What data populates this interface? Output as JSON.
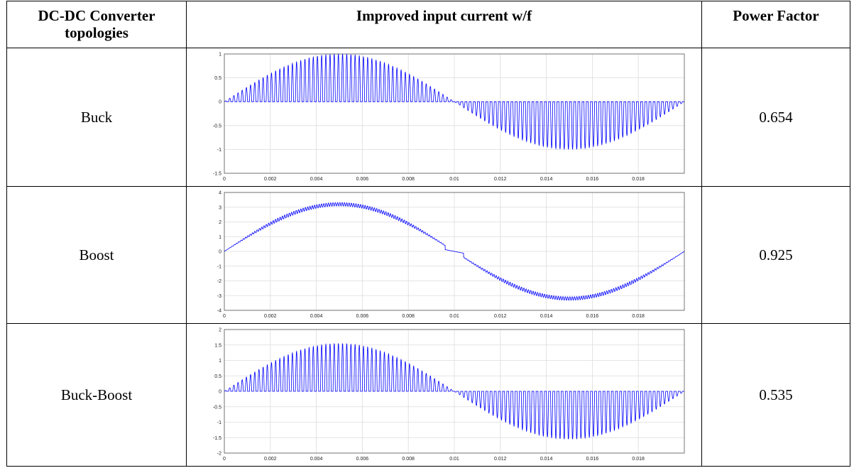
{
  "headers": {
    "col1": "DC-DC Converter topologies",
    "col2": "Improved input current w/f",
    "col3": "Power Factor"
  },
  "rows": [
    {
      "topology": "Buck",
      "power_factor": "0.654"
    },
    {
      "topology": "Boost",
      "power_factor": "0.925"
    },
    {
      "topology": "Buck-Boost",
      "power_factor": "0.535"
    }
  ],
  "chart_data": [
    {
      "type": "line",
      "name": "Buck",
      "x_range": [
        0,
        0.02
      ],
      "ylim": [
        -1.5,
        1
      ],
      "x_ticks": [
        "0",
        "0.002",
        "0.004",
        "0.006",
        "0.008",
        "0.01",
        "0.012",
        "0.014",
        "0.016",
        "0.018"
      ],
      "y_ticks": [
        "1",
        "0.5",
        "0",
        "-0.5",
        "-1",
        "-1.5"
      ],
      "waveform": "chopped",
      "amplitude": 1,
      "grid": true,
      "color": "#0000ff"
    },
    {
      "type": "line",
      "name": "Boost",
      "x_range": [
        0,
        0.02
      ],
      "ylim": [
        -4,
        4
      ],
      "x_ticks": [
        "0",
        "0.002",
        "0.004",
        "0.006",
        "0.008",
        "0.01",
        "0.012",
        "0.014",
        "0.016",
        "0.018"
      ],
      "y_ticks": [
        "4",
        "3",
        "2",
        "1",
        "0",
        "-1",
        "-2",
        "-3",
        "-4"
      ],
      "waveform": "sine_ripple",
      "amplitude": 3.2,
      "grid": true,
      "color": "#0000ff"
    },
    {
      "type": "line",
      "name": "Buck-Boost",
      "x_range": [
        0,
        0.02
      ],
      "ylim": [
        -2,
        2
      ],
      "x_ticks": [
        "0",
        "0.002",
        "0.004",
        "0.006",
        "0.008",
        "0.01",
        "0.012",
        "0.014",
        "0.016",
        "0.018"
      ],
      "y_ticks": [
        "2",
        "1.5",
        "1",
        "0.5",
        "0",
        "-0.5",
        "-1",
        "-1.5",
        "-2"
      ],
      "waveform": "chopped",
      "amplitude": 1.55,
      "grid": true,
      "color": "#0000ff"
    }
  ]
}
